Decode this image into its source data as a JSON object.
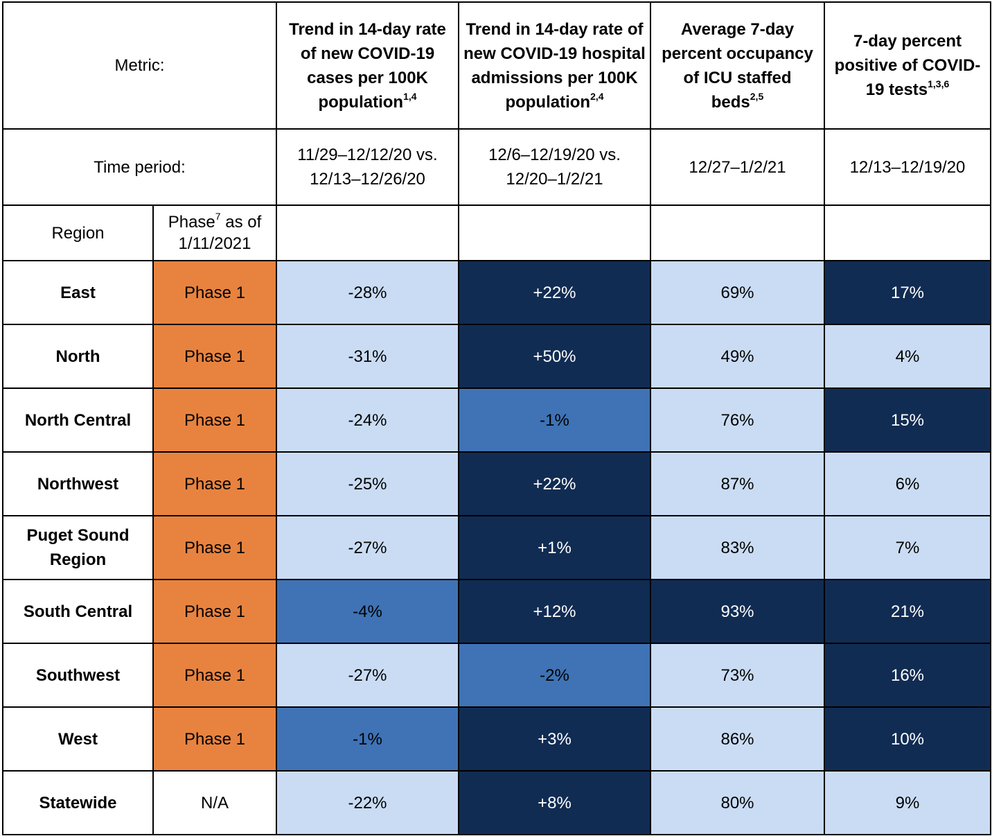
{
  "header": {
    "metric_label": "Metric:",
    "time_label": "Time period:",
    "region_label": "Region",
    "phase_label": "Phase",
    "phase_sup": "7",
    "phase_label_rest": " as of",
    "phase_date": "1/11/2021"
  },
  "columns": [
    {
      "title": "Trend in 14-day rate of new COVID-19 cases per 100K population",
      "sup": "1,4",
      "period": "11/29–12/12/20 vs. 12/13–12/26/20"
    },
    {
      "title": "Trend in 14-day rate of new COVID-19 hospital admissions per 100K population",
      "sup": "2,4",
      "period": "12/6–12/19/20 vs. 12/20–1/2/21"
    },
    {
      "title": "Average 7-day percent occupancy of ICU staffed beds",
      "sup": "2,5",
      "period": "12/27–1/2/21"
    },
    {
      "title": "7-day percent positive of COVID-19 tests",
      "sup": "1,3,6",
      "period": "12/13–12/19/20"
    }
  ],
  "rows": [
    {
      "region": "East",
      "phase": "Phase 1",
      "cases": "-28%",
      "hosp": "+22%",
      "icu": "69%",
      "pos": "17%"
    },
    {
      "region": "North",
      "phase": "Phase 1",
      "cases": "-31%",
      "hosp": "+50%",
      "icu": "49%",
      "pos": "4%"
    },
    {
      "region": "North Central",
      "phase": "Phase 1",
      "cases": "-24%",
      "hosp": "-1%",
      "icu": "76%",
      "pos": "15%"
    },
    {
      "region": "Northwest",
      "phase": "Phase 1",
      "cases": "-25%",
      "hosp": "+22%",
      "icu": "87%",
      "pos": "6%"
    },
    {
      "region": "Puget Sound Region",
      "phase": "Phase 1",
      "cases": "-27%",
      "hosp": "+1%",
      "icu": "83%",
      "pos": "7%"
    },
    {
      "region": "South Central",
      "phase": "Phase 1",
      "cases": "-4%",
      "hosp": "+12%",
      "icu": "93%",
      "pos": "21%"
    },
    {
      "region": "Southwest",
      "phase": "Phase 1",
      "cases": "-27%",
      "hosp": "-2%",
      "icu": "73%",
      "pos": "16%"
    },
    {
      "region": "West",
      "phase": "Phase 1",
      "cases": "-1%",
      "hosp": "+3%",
      "icu": "86%",
      "pos": "10%"
    },
    {
      "region": "Statewide",
      "phase": "N/A",
      "cases": "-22%",
      "hosp": "+8%",
      "icu": "80%",
      "pos": "9%"
    }
  ],
  "colors": {
    "phase1": "#e8833f",
    "light_blue": "#cadcf4",
    "mid_blue": "#3f73b5",
    "dark_navy": "#112c53"
  }
}
